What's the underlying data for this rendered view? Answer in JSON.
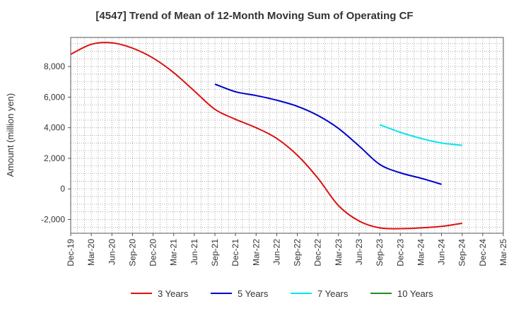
{
  "chart_data": {
    "type": "line",
    "title": "[4547]  Trend of Mean of 12-Month Moving Sum of Operating CF",
    "xlabel": "",
    "ylabel": "Amount (million yen)",
    "ylim": [
      -2900,
      9900
    ],
    "yticks": [
      -2000,
      0,
      2000,
      4000,
      6000,
      8000
    ],
    "ytick_labels": [
      "-2,000",
      "0",
      "2,000",
      "4,000",
      "6,000",
      "8,000"
    ],
    "categories": [
      "Dec-19",
      "Mar-20",
      "Jun-20",
      "Sep-20",
      "Dec-20",
      "Mar-21",
      "Jun-21",
      "Sep-21",
      "Dec-21",
      "Mar-22",
      "Jun-22",
      "Sep-22",
      "Dec-22",
      "Mar-23",
      "Jun-23",
      "Sep-23",
      "Dec-23",
      "Mar-24",
      "Jun-24",
      "Sep-24",
      "Dec-24",
      "Mar-25"
    ],
    "grid": true,
    "legend_position": "bottom",
    "series": [
      {
        "name": "3 Years",
        "color": "#dd1111",
        "values": [
          8800,
          9450,
          9550,
          9200,
          8550,
          7600,
          6400,
          5200,
          4550,
          4000,
          3300,
          2200,
          700,
          -1100,
          -2100,
          -2550,
          -2600,
          -2550,
          -2450,
          -2250,
          null,
          null
        ]
      },
      {
        "name": "5 Years",
        "color": "#0000cc",
        "values": [
          null,
          null,
          null,
          null,
          null,
          null,
          null,
          6850,
          6350,
          6100,
          5800,
          5400,
          4800,
          3950,
          2800,
          1600,
          1050,
          700,
          300,
          null,
          null,
          null
        ]
      },
      {
        "name": "7 Years",
        "color": "#00e5ee",
        "values": [
          null,
          null,
          null,
          null,
          null,
          null,
          null,
          null,
          null,
          null,
          null,
          null,
          null,
          null,
          null,
          4200,
          3700,
          3300,
          3000,
          2850,
          null,
          null
        ]
      },
      {
        "name": "10 Years",
        "color": "#228b22",
        "values": [
          null,
          null,
          null,
          null,
          null,
          null,
          null,
          null,
          null,
          null,
          null,
          null,
          null,
          null,
          null,
          null,
          null,
          null,
          null,
          null,
          null,
          null
        ]
      }
    ]
  }
}
